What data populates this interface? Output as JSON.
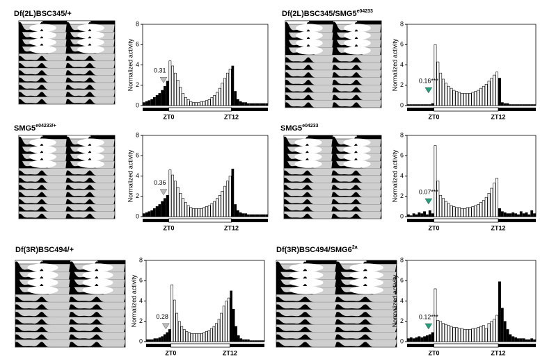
{
  "chart_data": [
    {
      "type": "bar",
      "title": "Df(2L)BSC345/+",
      "ylabel": "Normalized activity",
      "categories": [
        null,
        null,
        null,
        null,
        null,
        null,
        null,
        null,
        null,
        null,
        "ZT0",
        null,
        null,
        null,
        null,
        null,
        null,
        null,
        null,
        null,
        null,
        null,
        null,
        null,
        null,
        null,
        null,
        null,
        null,
        null,
        null,
        null,
        null,
        null,
        "ZT12",
        null,
        null,
        null,
        null,
        null,
        null,
        null,
        null,
        null,
        null,
        null,
        null,
        null
      ],
      "values": [
        0.3,
        0.4,
        0.5,
        0.6,
        0.8,
        1.0,
        1.2,
        1.5,
        1.9,
        2.4,
        4.4,
        3.9,
        3.2,
        2.5,
        1.8,
        1.2,
        0.8,
        0.6,
        0.4,
        0.3,
        0.3,
        0.3,
        0.4,
        0.4,
        0.5,
        0.6,
        0.8,
        1.0,
        1.3,
        1.7,
        2.2,
        2.7,
        3.2,
        3.6,
        3.9,
        1.4,
        0.6,
        0.4,
        0.3,
        0.3,
        0.2,
        0.2,
        0.2,
        0.2,
        0.2,
        0.2,
        0.2,
        0.2
      ],
      "ylim": [
        0,
        8
      ],
      "yticks": [
        0,
        2,
        4,
        6,
        8
      ],
      "annotation": "0.31",
      "annotation_color": "#bbbbbb"
    },
    {
      "type": "bar",
      "title": "Df(2L)BSC345/SMG5",
      "title_superscript": "e04233",
      "ylabel": "Normalized activity",
      "categories": [
        null,
        null,
        null,
        null,
        null,
        null,
        null,
        null,
        null,
        null,
        "ZT0",
        null,
        null,
        null,
        null,
        null,
        null,
        null,
        null,
        null,
        null,
        null,
        null,
        null,
        null,
        null,
        null,
        null,
        null,
        null,
        null,
        null,
        null,
        null,
        "ZT12",
        null,
        null,
        null,
        null,
        null,
        null,
        null,
        null,
        null,
        null,
        null,
        null,
        null
      ],
      "values": [
        0.1,
        0.1,
        0.1,
        0.1,
        0.1,
        0.1,
        0.1,
        0.1,
        0.1,
        0.2,
        6.0,
        4.3,
        3.2,
        2.6,
        2.2,
        1.9,
        1.7,
        1.5,
        1.4,
        1.3,
        1.2,
        1.2,
        1.2,
        1.2,
        1.3,
        1.4,
        1.5,
        1.7,
        1.9,
        2.1,
        2.4,
        2.7,
        3.0,
        3.3,
        2.7,
        0.3,
        0.2,
        0.2,
        0.1,
        0.1,
        0.1,
        0.1,
        0.1,
        0.1,
        0.1,
        0.1,
        0.1,
        0.1
      ],
      "ylim": [
        0,
        8
      ],
      "yticks": [
        0,
        2,
        4,
        6,
        8
      ],
      "annotation": "0.16***",
      "annotation_color": "#1aa37a"
    },
    {
      "type": "bar",
      "title": "SMG5",
      "title_superscript": "e04233/+",
      "ylabel": "Normalized activity",
      "categories": [
        null,
        null,
        null,
        null,
        null,
        null,
        null,
        null,
        null,
        null,
        "ZT0",
        null,
        null,
        null,
        null,
        null,
        null,
        null,
        null,
        null,
        null,
        null,
        null,
        null,
        null,
        null,
        null,
        null,
        null,
        null,
        null,
        null,
        null,
        null,
        "ZT12",
        null,
        null,
        null,
        null,
        null,
        null,
        null,
        null,
        null,
        null,
        null,
        null,
        null
      ],
      "values": [
        0.3,
        0.4,
        0.5,
        0.6,
        0.8,
        1.0,
        1.2,
        1.5,
        1.8,
        2.1,
        4.6,
        4.1,
        3.5,
        2.9,
        2.3,
        1.8,
        1.4,
        1.1,
        0.9,
        0.8,
        0.8,
        0.8,
        0.8,
        0.9,
        1.0,
        1.1,
        1.3,
        1.5,
        1.8,
        2.1,
        2.5,
        3.0,
        3.5,
        4.0,
        4.7,
        1.2,
        0.6,
        0.4,
        0.3,
        0.3,
        0.2,
        0.2,
        0.2,
        0.2,
        0.2,
        0.2,
        0.2,
        0.2
      ],
      "ylim": [
        0,
        8
      ],
      "yticks": [
        0,
        2,
        4,
        6,
        8
      ],
      "annotation": "0.36",
      "annotation_color": "#bbbbbb"
    },
    {
      "type": "bar",
      "title": "SMG5",
      "title_superscript": "e04233",
      "ylabel": "Normalized activity",
      "categories": [
        null,
        null,
        null,
        null,
        null,
        null,
        null,
        null,
        null,
        null,
        "ZT0",
        null,
        null,
        null,
        null,
        null,
        null,
        null,
        null,
        null,
        null,
        null,
        null,
        null,
        null,
        null,
        null,
        null,
        null,
        null,
        null,
        null,
        null,
        null,
        "ZT12",
        null,
        null,
        null,
        null,
        null,
        null,
        null,
        null,
        null,
        null,
        null,
        null,
        null
      ],
      "values": [
        0.2,
        0.1,
        0.3,
        0.2,
        0.4,
        0.3,
        0.5,
        0.2,
        0.6,
        0.3,
        7.0,
        3.5,
        2.1,
        1.8,
        1.5,
        1.3,
        1.1,
        1.0,
        0.9,
        0.9,
        0.8,
        0.8,
        0.9,
        0.9,
        1.0,
        1.1,
        1.2,
        1.4,
        1.6,
        1.9,
        2.3,
        2.8,
        3.3,
        3.8,
        0.8,
        0.5,
        0.4,
        0.3,
        0.3,
        0.4,
        0.3,
        0.2,
        0.5,
        0.3,
        0.4,
        0.2,
        0.6,
        0.3
      ],
      "ylim": [
        0,
        8
      ],
      "yticks": [
        0,
        2,
        4,
        6,
        8
      ],
      "annotation": "0.07***",
      "annotation_color": "#1aa37a"
    },
    {
      "type": "bar",
      "title": "Df(3R)BSC494/+",
      "ylabel": "Normalized activity",
      "categories": [
        null,
        null,
        null,
        null,
        null,
        null,
        null,
        null,
        null,
        null,
        "ZT0",
        null,
        null,
        null,
        null,
        null,
        null,
        null,
        null,
        null,
        null,
        null,
        null,
        null,
        null,
        null,
        null,
        null,
        null,
        null,
        null,
        null,
        null,
        null,
        "ZT12",
        null,
        null,
        null,
        null,
        null,
        null,
        null,
        null,
        null,
        null,
        null,
        null,
        null
      ],
      "values": [
        0.2,
        0.2,
        0.2,
        0.3,
        0.3,
        0.4,
        0.5,
        0.7,
        0.9,
        1.2,
        5.6,
        4.1,
        2.8,
        2.0,
        1.5,
        1.2,
        1.0,
        0.9,
        0.8,
        0.8,
        0.8,
        0.8,
        0.8,
        0.9,
        1.0,
        1.1,
        1.3,
        1.5,
        1.8,
        2.2,
        2.8,
        3.5,
        4.0,
        4.3,
        5.0,
        3.2,
        1.5,
        0.6,
        0.3,
        0.2,
        0.2,
        0.2,
        0.1,
        0.1,
        0.1,
        0.1,
        0.1,
        0.1
      ],
      "ylim": [
        0,
        8
      ],
      "yticks": [
        0,
        2,
        4,
        6,
        8
      ],
      "annotation": "0.28",
      "annotation_color": "#bbbbbb"
    },
    {
      "type": "bar",
      "title": "Df(3R)BSC494/SMG6",
      "title_superscript": "2a",
      "ylabel": "Normalized activity",
      "categories": [
        null,
        null,
        null,
        null,
        null,
        null,
        null,
        null,
        null,
        null,
        "ZT0",
        null,
        null,
        null,
        null,
        null,
        null,
        null,
        null,
        null,
        null,
        null,
        null,
        null,
        null,
        null,
        null,
        null,
        null,
        null,
        null,
        null,
        null,
        null,
        "ZT12",
        null,
        null,
        null,
        null,
        null,
        null,
        null,
        null,
        null,
        null,
        null,
        null,
        null
      ],
      "values": [
        0.3,
        0.4,
        0.3,
        0.4,
        0.5,
        0.4,
        0.5,
        0.6,
        0.7,
        0.9,
        5.2,
        2.1,
        2.0,
        1.8,
        1.7,
        1.6,
        1.5,
        1.4,
        1.4,
        1.3,
        1.3,
        1.2,
        1.2,
        1.2,
        1.3,
        1.3,
        1.4,
        1.5,
        1.6,
        1.3,
        1.8,
        2.0,
        2.2,
        2.6,
        5.9,
        3.3,
        2.0,
        1.2,
        0.7,
        0.5,
        0.4,
        0.3,
        0.3,
        0.3,
        0.2,
        0.2,
        0.3,
        0.2
      ],
      "ylim": [
        0,
        8
      ],
      "yticks": [
        0,
        2,
        4,
        6,
        8
      ],
      "annotation": "0.12***",
      "annotation_color": "#1aa37a"
    }
  ]
}
